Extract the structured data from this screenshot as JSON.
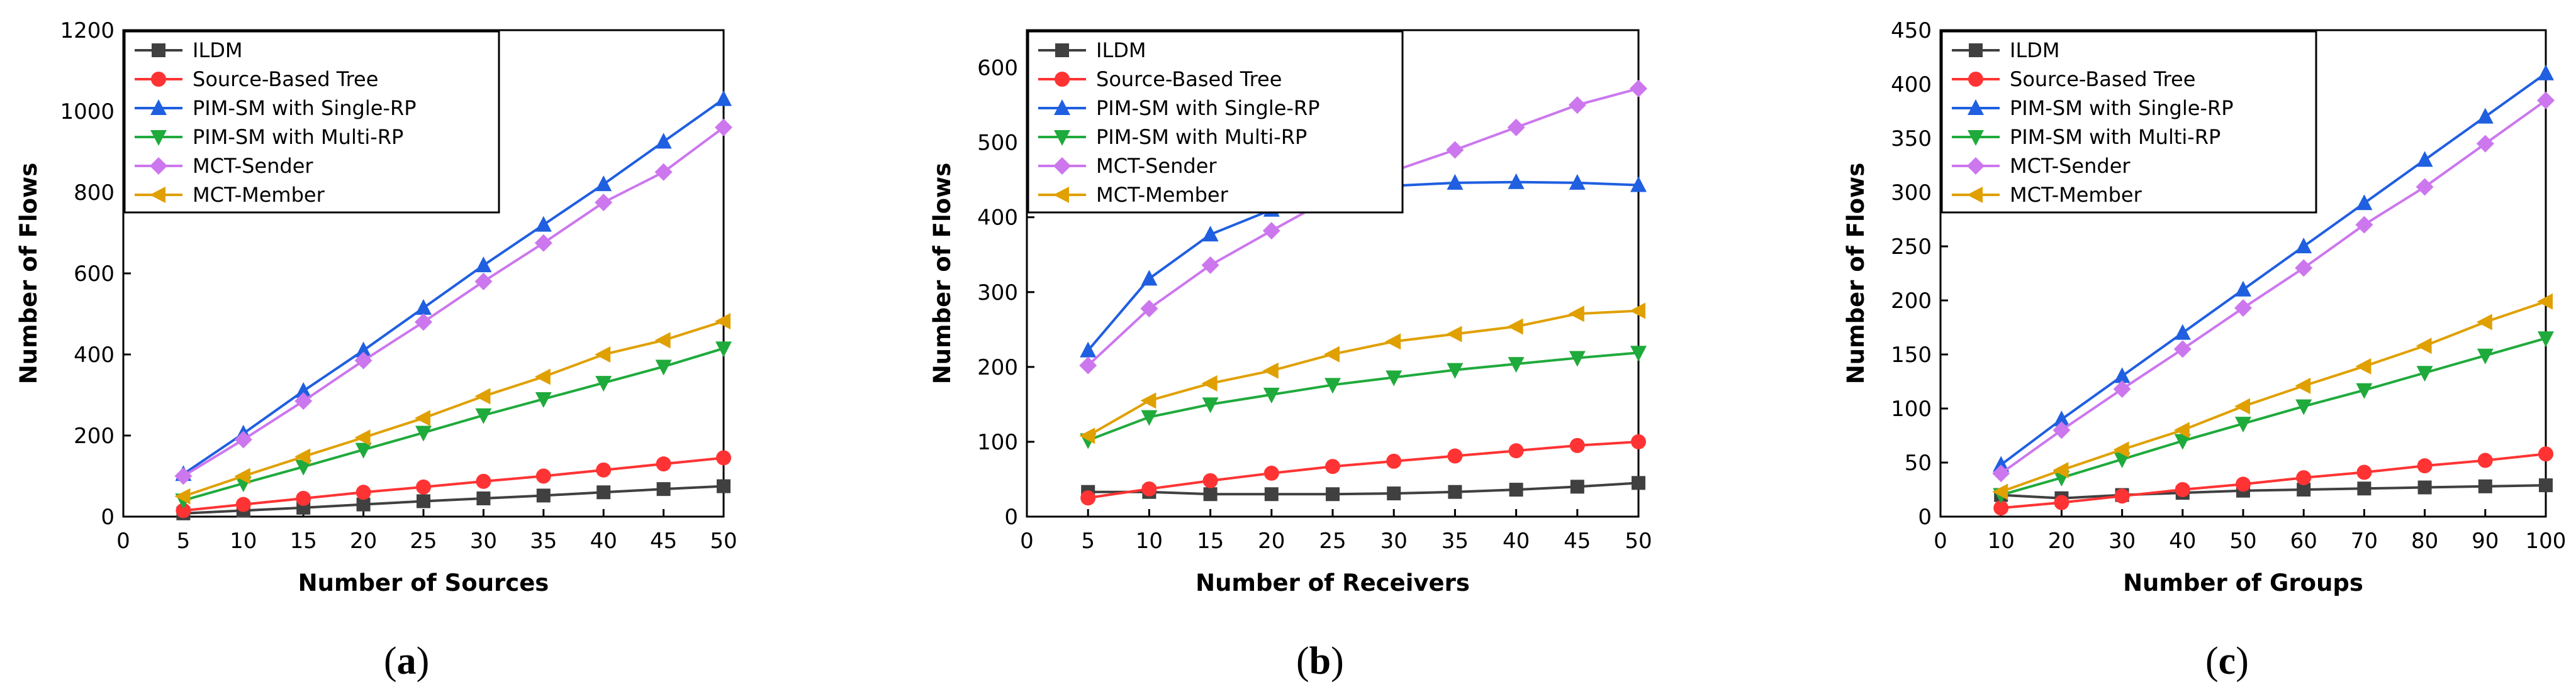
{
  "colors": {
    "ILDM": "#404040",
    "Source-Based Tree": "#ff3333",
    "PIM-SM with Single-RP": "#1f5fe0",
    "PIM-SM with Multi-RP": "#1faa3c",
    "MCT-Sender": "#cc77ee",
    "MCT-Member": "#e0a000"
  },
  "markers": {
    "ILDM": "square",
    "Source-Based Tree": "circle",
    "PIM-SM with Single-RP": "triangle-up",
    "PIM-SM with Multi-RP": "triangle-down",
    "MCT-Sender": "diamond",
    "MCT-Member": "triangle-left"
  },
  "chart_data": [
    {
      "type": "line",
      "panel_label": "a",
      "xlabel": "Number of Sources",
      "ylabel": "Number of Flows",
      "xlim": [
        0,
        50
      ],
      "ylim": [
        0,
        1200
      ],
      "xticks": [
        0,
        5,
        10,
        15,
        20,
        25,
        30,
        35,
        40,
        45,
        50
      ],
      "yticks": [
        0,
        200,
        400,
        600,
        800,
        1000,
        1200
      ],
      "grid": false,
      "legend": "top-left",
      "x": [
        5,
        10,
        15,
        20,
        25,
        30,
        35,
        40,
        45,
        50
      ],
      "series": [
        {
          "name": "ILDM",
          "values": [
            8,
            15,
            22,
            30,
            38,
            45,
            52,
            60,
            68,
            75
          ]
        },
        {
          "name": "Source-Based Tree",
          "values": [
            15,
            30,
            45,
            60,
            73,
            87,
            100,
            115,
            130,
            145
          ]
        },
        {
          "name": "PIM-SM with Single-RP",
          "values": [
            105,
            205,
            310,
            410,
            515,
            620,
            720,
            820,
            925,
            1030
          ]
        },
        {
          "name": "PIM-SM with Multi-RP",
          "values": [
            40,
            82,
            123,
            165,
            207,
            250,
            290,
            330,
            370,
            415
          ]
        },
        {
          "name": "MCT-Sender",
          "values": [
            100,
            190,
            285,
            385,
            480,
            580,
            675,
            775,
            850,
            960
          ]
        },
        {
          "name": "MCT-Member",
          "values": [
            50,
            100,
            148,
            195,
            243,
            297,
            345,
            400,
            435,
            482
          ]
        }
      ]
    },
    {
      "type": "line",
      "panel_label": "b",
      "xlabel": "Number of Receivers",
      "ylabel": "Number of Flows",
      "xlim": [
        0,
        50
      ],
      "ylim": [
        0,
        650
      ],
      "xticks": [
        0,
        5,
        10,
        15,
        20,
        25,
        30,
        35,
        40,
        45,
        50
      ],
      "yticks": [
        0,
        100,
        200,
        300,
        400,
        500,
        600
      ],
      "grid": false,
      "legend": "top-left",
      "x": [
        5,
        10,
        15,
        20,
        25,
        30,
        35,
        40,
        45,
        50
      ],
      "series": [
        {
          "name": "ILDM",
          "values": [
            33,
            33,
            30,
            30,
            30,
            31,
            33,
            36,
            40,
            45
          ]
        },
        {
          "name": "Source-Based Tree",
          "values": [
            25,
            37,
            48,
            58,
            67,
            74,
            81,
            88,
            95,
            100
          ]
        },
        {
          "name": "PIM-SM with Single-RP",
          "values": [
            222,
            318,
            377,
            410,
            430,
            442,
            446,
            447,
            446,
            443
          ]
        },
        {
          "name": "PIM-SM with Multi-RP",
          "values": [
            102,
            133,
            150,
            163,
            176,
            186,
            196,
            204,
            212,
            219
          ]
        },
        {
          "name": "MCT-Sender",
          "values": [
            202,
            278,
            336,
            382,
            427,
            462,
            490,
            520,
            550,
            572
          ]
        },
        {
          "name": "MCT-Member",
          "values": [
            108,
            155,
            178,
            195,
            217,
            234,
            244,
            254,
            271,
            275
          ]
        }
      ]
    },
    {
      "type": "line",
      "panel_label": "c",
      "xlabel": "Number of Groups",
      "ylabel": "Number of Flows",
      "xlim": [
        0,
        100
      ],
      "ylim": [
        0,
        450
      ],
      "xticks": [
        0,
        10,
        20,
        30,
        40,
        50,
        60,
        70,
        80,
        90,
        100
      ],
      "yticks": [
        0,
        50,
        100,
        150,
        200,
        250,
        300,
        350,
        400,
        450
      ],
      "grid": false,
      "legend": "top-left",
      "x": [
        10,
        20,
        30,
        40,
        50,
        60,
        70,
        80,
        90,
        100
      ],
      "series": [
        {
          "name": "ILDM",
          "values": [
            20,
            17,
            20,
            22,
            24,
            25,
            26,
            27,
            28,
            29
          ]
        },
        {
          "name": "Source-Based Tree",
          "values": [
            8,
            13,
            19,
            25,
            30,
            36,
            41,
            47,
            52,
            58
          ]
        },
        {
          "name": "PIM-SM with Single-RP",
          "values": [
            48,
            90,
            130,
            170,
            210,
            250,
            290,
            330,
            370,
            410
          ]
        },
        {
          "name": "PIM-SM with Multi-RP",
          "values": [
            20,
            36,
            53,
            70,
            86,
            102,
            117,
            133,
            149,
            165
          ]
        },
        {
          "name": "MCT-Sender",
          "values": [
            40,
            80,
            118,
            155,
            193,
            230,
            270,
            305,
            345,
            385
          ]
        },
        {
          "name": "MCT-Member",
          "values": [
            23,
            43,
            62,
            80,
            102,
            121,
            139,
            158,
            180,
            199
          ]
        }
      ]
    }
  ]
}
